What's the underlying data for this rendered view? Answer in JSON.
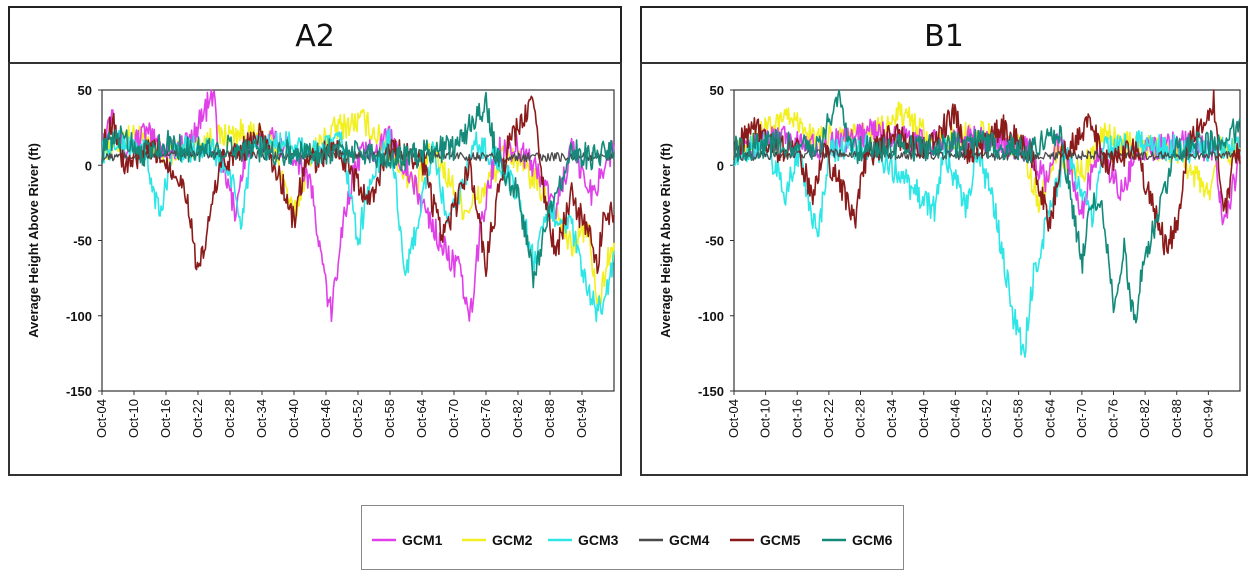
{
  "colors": {
    "GCM1": "#e040e8",
    "GCM2": "#f2f020",
    "GCM3": "#2ee6e6",
    "GCM4": "#4a4a4a",
    "GCM5": "#8b1a1a",
    "GCM6": "#138a7a"
  },
  "legend": [
    "GCM1",
    "GCM2",
    "GCM3",
    "GCM4",
    "GCM5",
    "GCM6"
  ],
  "chart_data": [
    {
      "type": "line",
      "title": "A2",
      "ylabel": "Average Height Above River (ft)",
      "ylim": [
        -150,
        50
      ],
      "yticks": [
        50,
        0,
        -50,
        -100,
        -150
      ],
      "xticks": [
        "Oct-04",
        "Oct-10",
        "Oct-16",
        "Oct-22",
        "Oct-28",
        "Oct-34",
        "Oct-40",
        "Oct-46",
        "Oct-52",
        "Oct-58",
        "Oct-64",
        "Oct-70",
        "Oct-76",
        "Oct-82",
        "Oct-88",
        "Oct-94"
      ],
      "xrange": [
        2004,
        2100
      ],
      "series": [
        {
          "name": "GCM1",
          "points": [
            [
              2004,
              12
            ],
            [
              2006,
              40
            ],
            [
              2008,
              8
            ],
            [
              2012,
              22
            ],
            [
              2016,
              10
            ],
            [
              2020,
              14
            ],
            [
              2025,
              48
            ],
            [
              2026,
              5
            ],
            [
              2029,
              -30
            ],
            [
              2031,
              10
            ],
            [
              2036,
              18
            ],
            [
              2040,
              8
            ],
            [
              2043,
              -10
            ],
            [
              2045,
              -60
            ],
            [
              2047,
              -100
            ],
            [
              2049,
              -40
            ],
            [
              2052,
              5
            ],
            [
              2058,
              18
            ],
            [
              2062,
              -10
            ],
            [
              2066,
              -40
            ],
            [
              2068,
              -55
            ],
            [
              2071,
              -70
            ],
            [
              2073,
              -104
            ],
            [
              2075,
              -40
            ],
            [
              2078,
              10
            ],
            [
              2082,
              12
            ],
            [
              2086,
              -5
            ],
            [
              2089,
              -30
            ],
            [
              2092,
              10
            ],
            [
              2096,
              -20
            ],
            [
              2099,
              8
            ]
          ]
        },
        {
          "name": "GCM2",
          "points": [
            [
              2004,
              10
            ],
            [
              2010,
              20
            ],
            [
              2016,
              8
            ],
            [
              2022,
              15
            ],
            [
              2030,
              22
            ],
            [
              2036,
              15
            ],
            [
              2040,
              -35
            ],
            [
              2043,
              8
            ],
            [
              2048,
              25
            ],
            [
              2053,
              30
            ],
            [
              2058,
              10
            ],
            [
              2063,
              -15
            ],
            [
              2066,
              12
            ],
            [
              2072,
              -30
            ],
            [
              2075,
              -20
            ],
            [
              2080,
              10
            ],
            [
              2085,
              -10
            ],
            [
              2089,
              -30
            ],
            [
              2092,
              -55
            ],
            [
              2095,
              -40
            ],
            [
              2097,
              -95
            ],
            [
              2099,
              -60
            ]
          ]
        },
        {
          "name": "GCM3",
          "points": [
            [
              2004,
              10
            ],
            [
              2008,
              15
            ],
            [
              2012,
              8
            ],
            [
              2015,
              -35
            ],
            [
              2017,
              10
            ],
            [
              2024,
              12
            ],
            [
              2028,
              -5
            ],
            [
              2030,
              -40
            ],
            [
              2032,
              10
            ],
            [
              2038,
              15
            ],
            [
              2044,
              8
            ],
            [
              2049,
              15
            ],
            [
              2052,
              -50
            ],
            [
              2054,
              -15
            ],
            [
              2058,
              20
            ],
            [
              2061,
              -75
            ],
            [
              2063,
              -40
            ],
            [
              2066,
              10
            ],
            [
              2069,
              -40
            ],
            [
              2071,
              -20
            ],
            [
              2074,
              15
            ],
            [
              2078,
              5
            ],
            [
              2082,
              -20
            ],
            [
              2085,
              -65
            ],
            [
              2088,
              -30
            ],
            [
              2092,
              -40
            ],
            [
              2095,
              -85
            ],
            [
              2097,
              -97
            ],
            [
              2099,
              -80
            ],
            [
              2100,
              -60
            ]
          ]
        },
        {
          "name": "GCM4",
          "points": [
            [
              2004,
              5
            ],
            [
              2020,
              8
            ],
            [
              2040,
              6
            ],
            [
              2060,
              8
            ],
            [
              2080,
              5
            ],
            [
              2100,
              6
            ]
          ]
        },
        {
          "name": "GCM5",
          "points": [
            [
              2004,
              10
            ],
            [
              2006,
              32
            ],
            [
              2008,
              0
            ],
            [
              2014,
              10
            ],
            [
              2018,
              -5
            ],
            [
              2020,
              -20
            ],
            [
              2022,
              -75
            ],
            [
              2024,
              -40
            ],
            [
              2026,
              0
            ],
            [
              2030,
              10
            ],
            [
              2034,
              20
            ],
            [
              2038,
              -15
            ],
            [
              2040,
              -38
            ],
            [
              2042,
              0
            ],
            [
              2048,
              12
            ],
            [
              2054,
              -25
            ],
            [
              2058,
              10
            ],
            [
              2064,
              5
            ],
            [
              2066,
              -25
            ],
            [
              2068,
              -48
            ],
            [
              2070,
              -30
            ],
            [
              2073,
              0
            ],
            [
              2076,
              -65
            ],
            [
              2078,
              -25
            ],
            [
              2080,
              10
            ],
            [
              2085,
              45
            ],
            [
              2086,
              0
            ],
            [
              2089,
              -60
            ],
            [
              2092,
              -20
            ],
            [
              2095,
              -45
            ],
            [
              2097,
              -65
            ],
            [
              2098,
              -35
            ],
            [
              2100,
              -30
            ]
          ]
        },
        {
          "name": "GCM6",
          "points": [
            [
              2004,
              10
            ],
            [
              2008,
              20
            ],
            [
              2012,
              8
            ],
            [
              2016,
              15
            ],
            [
              2020,
              10
            ],
            [
              2030,
              12
            ],
            [
              2040,
              8
            ],
            [
              2050,
              10
            ],
            [
              2060,
              5
            ],
            [
              2070,
              12
            ],
            [
              2076,
              40
            ],
            [
              2078,
              5
            ],
            [
              2082,
              -20
            ],
            [
              2085,
              -75
            ],
            [
              2088,
              -30
            ],
            [
              2092,
              10
            ],
            [
              2096,
              5
            ],
            [
              2100,
              10
            ]
          ]
        }
      ]
    },
    {
      "type": "line",
      "title": "B1",
      "ylabel": "Average Height Above River (ft)",
      "ylim": [
        -150,
        50
      ],
      "yticks": [
        50,
        0,
        -50,
        -100,
        -150
      ],
      "xticks": [
        "Oct-04",
        "Oct-10",
        "Oct-16",
        "Oct-22",
        "Oct-28",
        "Oct-34",
        "Oct-40",
        "Oct-46",
        "Oct-52",
        "Oct-58",
        "Oct-64",
        "Oct-70",
        "Oct-76",
        "Oct-82",
        "Oct-88",
        "Oct-94"
      ],
      "xrange": [
        2004,
        2100
      ],
      "series": [
        {
          "name": "GCM1",
          "points": [
            [
              2004,
              10
            ],
            [
              2012,
              18
            ],
            [
              2020,
              12
            ],
            [
              2030,
              22
            ],
            [
              2040,
              15
            ],
            [
              2050,
              18
            ],
            [
              2060,
              10
            ],
            [
              2063,
              -10
            ],
            [
              2066,
              20
            ],
            [
              2070,
              -30
            ],
            [
              2073,
              10
            ],
            [
              2078,
              -20
            ],
            [
              2080,
              10
            ],
            [
              2090,
              15
            ],
            [
              2095,
              10
            ],
            [
              2097,
              -40
            ],
            [
              2100,
              5
            ]
          ]
        },
        {
          "name": "GCM2",
          "points": [
            [
              2004,
              12
            ],
            [
              2014,
              30
            ],
            [
              2020,
              18
            ],
            [
              2030,
              20
            ],
            [
              2036,
              35
            ],
            [
              2042,
              15
            ],
            [
              2050,
              22
            ],
            [
              2058,
              12
            ],
            [
              2062,
              -25
            ],
            [
              2065,
              10
            ],
            [
              2070,
              -5
            ],
            [
              2074,
              20
            ],
            [
              2080,
              12
            ],
            [
              2088,
              10
            ],
            [
              2094,
              -20
            ],
            [
              2096,
              10
            ],
            [
              2100,
              8
            ]
          ]
        },
        {
          "name": "GCM3",
          "points": [
            [
              2004,
              8
            ],
            [
              2010,
              15
            ],
            [
              2014,
              -20
            ],
            [
              2016,
              10
            ],
            [
              2020,
              -50
            ],
            [
              2022,
              10
            ],
            [
              2030,
              12
            ],
            [
              2042,
              -30
            ],
            [
              2044,
              10
            ],
            [
              2048,
              -30
            ],
            [
              2050,
              10
            ],
            [
              2053,
              -20
            ],
            [
              2055,
              -60
            ],
            [
              2057,
              -100
            ],
            [
              2059,
              -125
            ],
            [
              2061,
              -70
            ],
            [
              2064,
              -30
            ],
            [
              2067,
              10
            ],
            [
              2072,
              -40
            ],
            [
              2074,
              10
            ],
            [
              2080,
              15
            ],
            [
              2090,
              10
            ],
            [
              2100,
              12
            ]
          ]
        },
        {
          "name": "GCM4",
          "points": [
            [
              2004,
              6
            ],
            [
              2025,
              8
            ],
            [
              2050,
              6
            ],
            [
              2075,
              7
            ],
            [
              2100,
              6
            ]
          ]
        },
        {
          "name": "GCM5",
          "points": [
            [
              2004,
              12
            ],
            [
              2008,
              25
            ],
            [
              2012,
              10
            ],
            [
              2016,
              15
            ],
            [
              2019,
              -25
            ],
            [
              2021,
              10
            ],
            [
              2027,
              -35
            ],
            [
              2029,
              5
            ],
            [
              2034,
              20
            ],
            [
              2040,
              10
            ],
            [
              2046,
              35
            ],
            [
              2048,
              5
            ],
            [
              2055,
              25
            ],
            [
              2060,
              10
            ],
            [
              2064,
              -40
            ],
            [
              2066,
              5
            ],
            [
              2072,
              30
            ],
            [
              2074,
              0
            ],
            [
              2080,
              10
            ],
            [
              2086,
              -55
            ],
            [
              2088,
              -40
            ],
            [
              2090,
              10
            ],
            [
              2095,
              42
            ],
            [
              2097,
              -35
            ],
            [
              2099,
              10
            ]
          ]
        },
        {
          "name": "GCM6",
          "points": [
            [
              2004,
              10
            ],
            [
              2012,
              15
            ],
            [
              2020,
              12
            ],
            [
              2024,
              45
            ],
            [
              2026,
              10
            ],
            [
              2040,
              12
            ],
            [
              2050,
              15
            ],
            [
              2060,
              10
            ],
            [
              2066,
              20
            ],
            [
              2070,
              -65
            ],
            [
              2072,
              -20
            ],
            [
              2074,
              -30
            ],
            [
              2076,
              -90
            ],
            [
              2078,
              -55
            ],
            [
              2080,
              -105
            ],
            [
              2082,
              -60
            ],
            [
              2084,
              -40
            ],
            [
              2088,
              10
            ],
            [
              2094,
              15
            ],
            [
              2100,
              25
            ]
          ]
        }
      ]
    }
  ]
}
